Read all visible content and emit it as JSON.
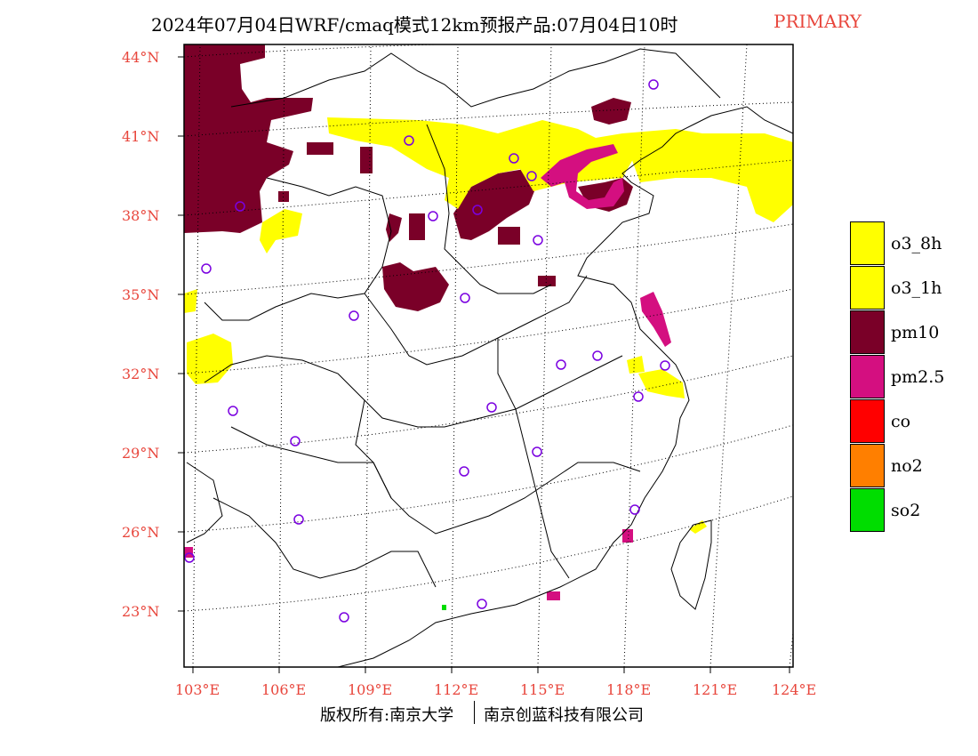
{
  "title": {
    "main": "2024年07月04日WRF/cmaq模式12km预报产品:07月04日10时",
    "tag": "PRIMARY",
    "tag_color": "#e8463c"
  },
  "lat_labels": [
    "44°N",
    "41°N",
    "38°N",
    "35°N",
    "32°N",
    "29°N",
    "26°N",
    "23°N"
  ],
  "lon_labels": [
    "103°E",
    "106°E",
    "109°E",
    "112°E",
    "115°E",
    "118°E",
    "121°E",
    "124°E"
  ],
  "legend": [
    {
      "label": "o3_8h",
      "color": "#ffff00"
    },
    {
      "label": "o3_1h",
      "color": "#ffff00"
    },
    {
      "label": "pm10",
      "color": "#7a0028"
    },
    {
      "label": "pm2.5",
      "color": "#d40f80"
    },
    {
      "label": "co",
      "color": "#ff0000"
    },
    {
      "label": "no2",
      "color": "#ff7f00"
    },
    {
      "label": "so2",
      "color": "#00dd00"
    }
  ],
  "copyright": {
    "left": "版权所有:南京大学",
    "right": "南京创蓝科技有限公司"
  },
  "colors": {
    "label_red": "#e8463c",
    "station_marker": "#7a00e0",
    "frame": "#000000"
  }
}
